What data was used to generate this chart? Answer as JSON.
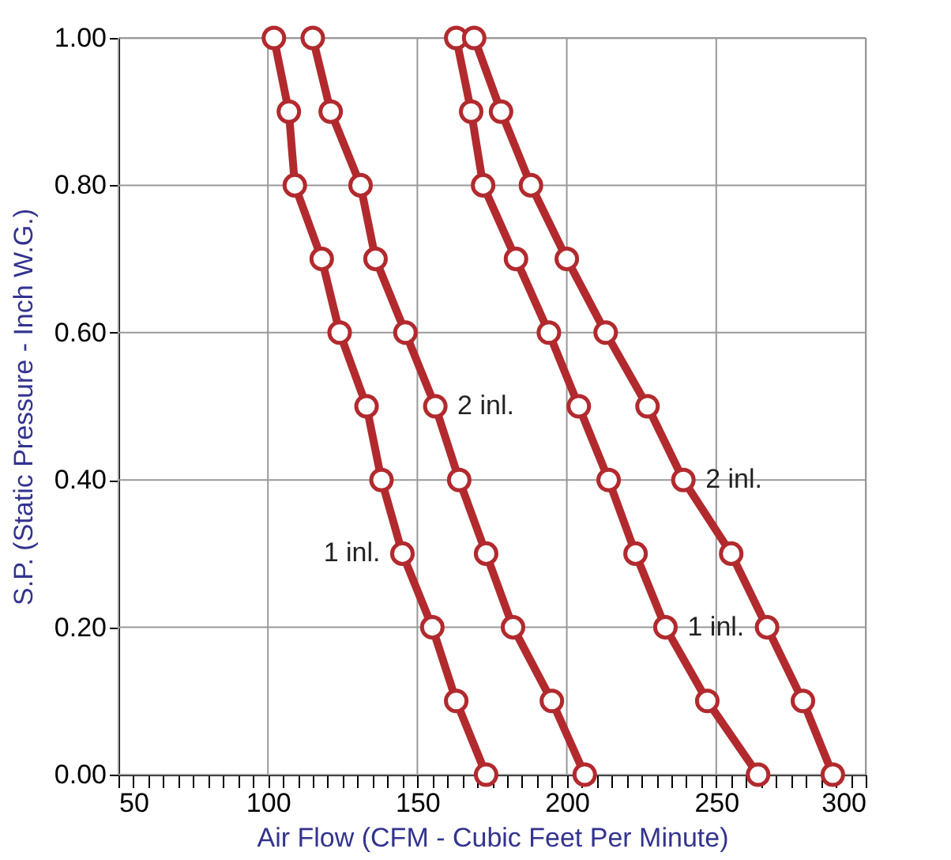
{
  "chart_data": {
    "type": "line",
    "xlabel": "Air Flow (CFM - Cubic Feet Per Minute)",
    "ylabel": "S.P. (Static Pressure - Inch W.G.)",
    "xlim": [
      50,
      300
    ],
    "ylim": [
      0,
      1
    ],
    "xticks": [
      50,
      {
        "value": 55,
        "label": null
      },
      {
        "value": 60,
        "label": null
      },
      {
        "value": 65,
        "label": null
      },
      {
        "value": 70,
        "label": null
      },
      {
        "value": 75,
        "label": null
      },
      {
        "value": 80,
        "label": null
      },
      {
        "value": 85,
        "label": null
      },
      {
        "value": 90,
        "label": null
      },
      {
        "value": 95,
        "label": null
      },
      100,
      {
        "value": 105,
        "label": null
      },
      {
        "value": 110,
        "label": null
      },
      {
        "value": 115,
        "label": null
      },
      {
        "value": 120,
        "label": null
      },
      {
        "value": 125,
        "label": null
      },
      {
        "value": 130,
        "label": null
      },
      {
        "value": 135,
        "label": null
      },
      {
        "value": 140,
        "label": null
      },
      {
        "value": 145,
        "label": null
      },
      150,
      {
        "value": 155,
        "label": null
      },
      {
        "value": 160,
        "label": null
      },
      {
        "value": 165,
        "label": null
      },
      {
        "value": 170,
        "label": null
      },
      {
        "value": 175,
        "label": null
      },
      {
        "value": 180,
        "label": null
      },
      {
        "value": 185,
        "label": null
      },
      {
        "value": 190,
        "label": null
      },
      {
        "value": 195,
        "label": null
      },
      200,
      {
        "value": 205,
        "label": null
      },
      {
        "value": 210,
        "label": null
      },
      {
        "value": 215,
        "label": null
      },
      {
        "value": 220,
        "label": null
      },
      {
        "value": 225,
        "label": null
      },
      {
        "value": 230,
        "label": null
      },
      {
        "value": 235,
        "label": null
      },
      {
        "value": 240,
        "label": null
      },
      {
        "value": 245,
        "label": null
      },
      250,
      {
        "value": 255,
        "label": null
      },
      {
        "value": 260,
        "label": null
      },
      {
        "value": 265,
        "label": null
      },
      {
        "value": 270,
        "label": null
      },
      {
        "value": 275,
        "label": null
      },
      {
        "value": 280,
        "label": null
      },
      {
        "value": 285,
        "label": null
      },
      {
        "value": 290,
        "label": null
      },
      {
        "value": 295,
        "label": null
      },
      300
    ],
    "yticks": [
      {
        "value": 0,
        "label": "0.00"
      },
      {
        "value": 0.2,
        "label": "0.20"
      },
      {
        "value": 0.4,
        "label": "0.40"
      },
      {
        "value": 0.6,
        "label": "0.60"
      },
      {
        "value": 0.8,
        "label": "0.80"
      },
      {
        "value": 1,
        "label": "1.00"
      }
    ],
    "grid": true,
    "marker": "circle",
    "line_style": "solid",
    "series": [
      {
        "name": "1 inl.",
        "color": "#b22a2e",
        "x": [
          102,
          107,
          109,
          118,
          124,
          133,
          138,
          145,
          155,
          163,
          173
        ],
        "values": [
          1,
          0.9,
          0.8,
          0.7,
          0.6,
          0.5,
          0.4,
          0.3,
          0.2,
          0.1,
          0
        ]
      },
      {
        "name": "2 inl.",
        "color": "#b22a2e",
        "x": [
          115,
          121,
          131,
          136,
          146,
          156,
          164,
          173,
          182,
          195,
          206
        ],
        "values": [
          1,
          0.9,
          0.8,
          0.7,
          0.6,
          0.5,
          0.4,
          0.3,
          0.2,
          0.1,
          0
        ]
      },
      {
        "name": "1 inl.",
        "color": "#b22a2e",
        "x": [
          163,
          168,
          172,
          183,
          194,
          204,
          214,
          223,
          233,
          247,
          264
        ],
        "values": [
          1,
          0.9,
          0.8,
          0.7,
          0.6,
          0.5,
          0.4,
          0.3,
          0.2,
          0.1,
          0
        ]
      },
      {
        "name": "2 inl.",
        "color": "#b22a2e",
        "x": [
          169,
          178,
          188,
          200,
          213,
          227,
          239,
          255,
          267,
          279,
          289
        ],
        "values": [
          1,
          0.9,
          0.8,
          0.7,
          0.6,
          0.5,
          0.4,
          0.3,
          0.2,
          0.1,
          0
        ]
      }
    ]
  }
}
